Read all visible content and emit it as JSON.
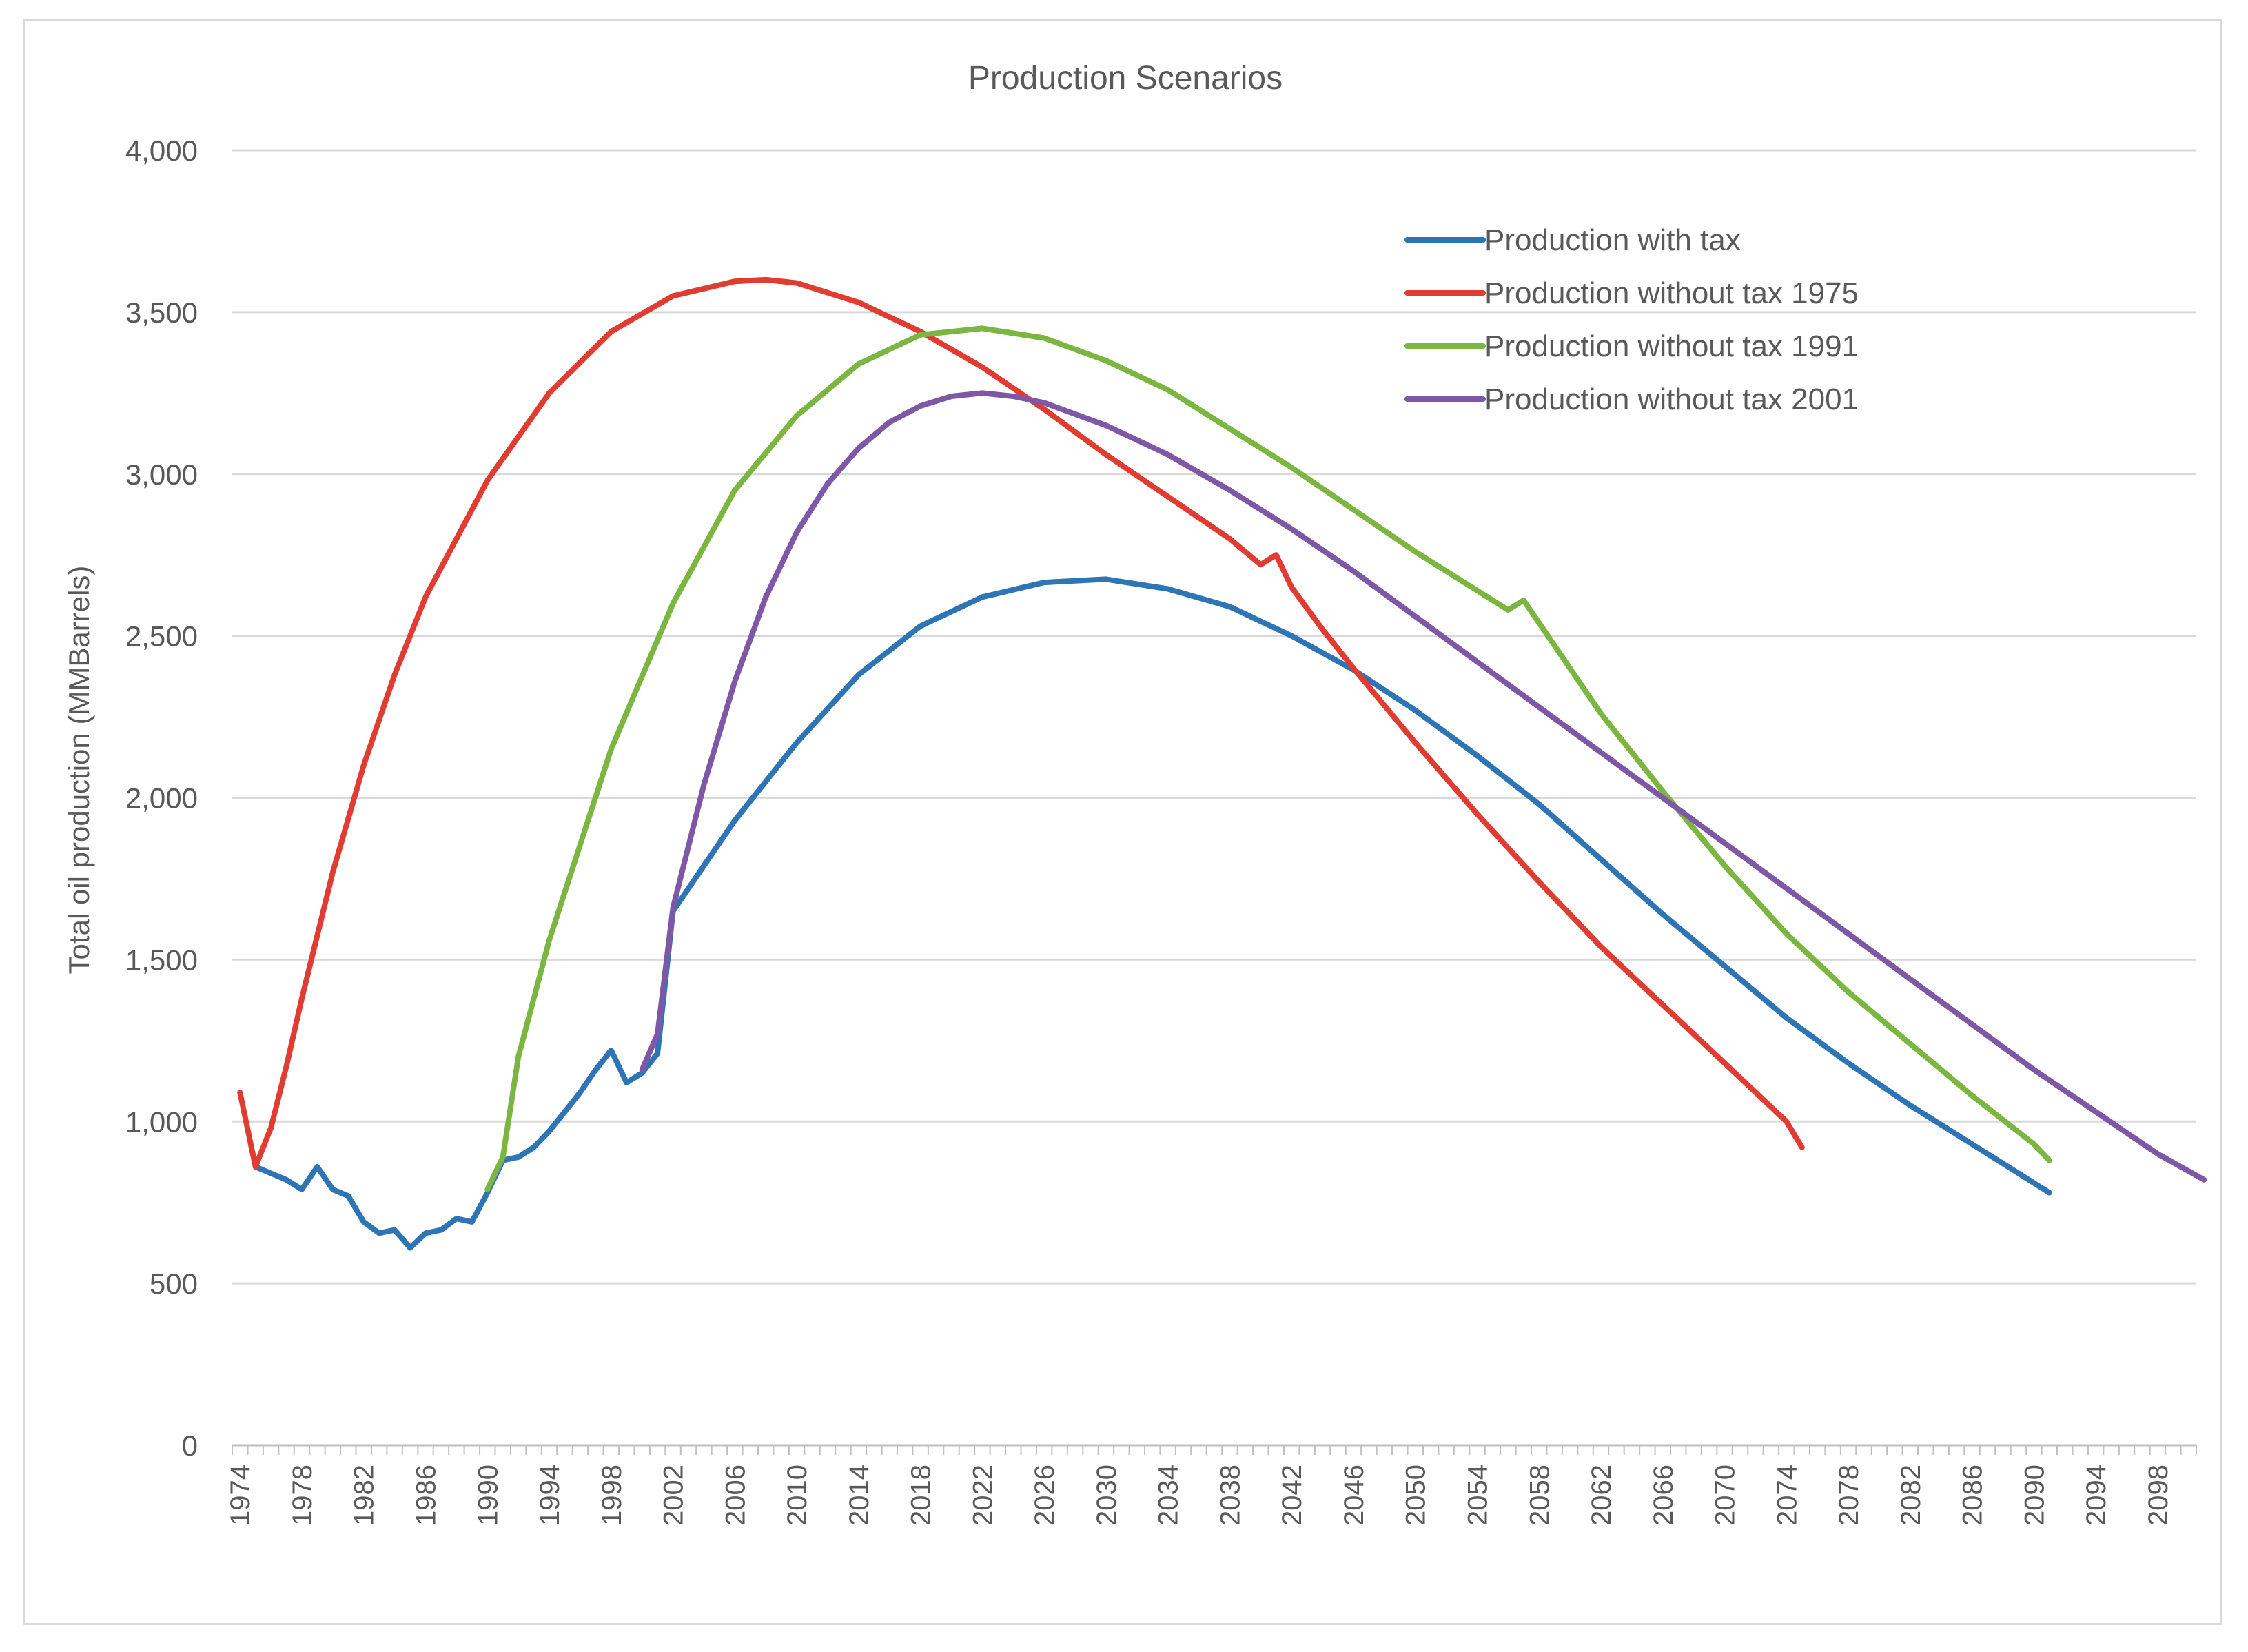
{
  "chart_data": {
    "type": "line",
    "title": "Production Scenarios",
    "xlabel": "",
    "ylabel": "Total oil  production (MMBarrels)",
    "ylim": [
      0,
      4000
    ],
    "xlim": [
      1974,
      2101
    ],
    "y_ticks": [
      "0",
      "500",
      "1,000",
      "1,500",
      "2,000",
      "2,500",
      "3,000",
      "3,500",
      "4,000"
    ],
    "x_ticks": [
      "1974",
      "1978",
      "1982",
      "1986",
      "1990",
      "1994",
      "1998",
      "2002",
      "2006",
      "2010",
      "2014",
      "2018",
      "2022",
      "2026",
      "2030",
      "2034",
      "2038",
      "2042",
      "2046",
      "2050",
      "2054",
      "2058",
      "2062",
      "2066",
      "2070",
      "2074",
      "2078",
      "2082",
      "2086",
      "2090",
      "2094",
      "2098"
    ],
    "grid": true,
    "legend_position": "top-right",
    "series": [
      {
        "name": "Production with tax",
        "color": "#2e75b6",
        "x": [
          1975,
          1976,
          1977,
          1978,
          1979,
          1980,
          1981,
          1982,
          1983,
          1984,
          1985,
          1986,
          1987,
          1988,
          1989,
          1990,
          1991,
          1992,
          1993,
          1994,
          1995,
          1996,
          1997,
          1998,
          1999,
          2000,
          2001,
          2002,
          2006,
          2010,
          2014,
          2018,
          2022,
          2026,
          2030,
          2034,
          2038,
          2042,
          2046,
          2050,
          2054,
          2058,
          2062,
          2066,
          2070,
          2074,
          2078,
          2082,
          2086,
          2090,
          2091
        ],
        "values": [
          860,
          840,
          820,
          790,
          860,
          790,
          770,
          690,
          655,
          665,
          610,
          655,
          665,
          700,
          690,
          780,
          880,
          890,
          920,
          970,
          1030,
          1090,
          1160,
          1220,
          1120,
          1150,
          1210,
          1650,
          1930,
          2170,
          2380,
          2530,
          2620,
          2665,
          2675,
          2645,
          2590,
          2500,
          2395,
          2270,
          2130,
          1980,
          1810,
          1640,
          1480,
          1320,
          1180,
          1050,
          930,
          810,
          780
        ]
      },
      {
        "name": "Production without  tax 1975",
        "color": "#e03c31",
        "x": [
          1974,
          1975,
          1976,
          1977,
          1978,
          1980,
          1982,
          1984,
          1986,
          1990,
          1994,
          1998,
          2002,
          2006,
          2008,
          2010,
          2014,
          2018,
          2022,
          2026,
          2030,
          2034,
          2038,
          2040,
          2041,
          2042,
          2044,
          2046,
          2050,
          2054,
          2058,
          2062,
          2066,
          2070,
          2074,
          2075
        ],
        "values": [
          1090,
          860,
          980,
          1170,
          1380,
          1770,
          2100,
          2380,
          2620,
          2980,
          3250,
          3440,
          3550,
          3595,
          3600,
          3590,
          3530,
          3440,
          3330,
          3200,
          3060,
          2930,
          2800,
          2720,
          2750,
          2650,
          2520,
          2400,
          2170,
          1950,
          1740,
          1540,
          1360,
          1180,
          1000,
          920
        ]
      },
      {
        "name": "Production without  tax 1991",
        "color": "#7ab640",
        "x": [
          1990,
          1991,
          1992,
          1994,
          1998,
          2002,
          2006,
          2010,
          2014,
          2018,
          2022,
          2026,
          2030,
          2034,
          2038,
          2042,
          2046,
          2050,
          2054,
          2056,
          2057,
          2058,
          2062,
          2066,
          2070,
          2074,
          2078,
          2082,
          2086,
          2090,
          2091
        ],
        "values": [
          790,
          890,
          1200,
          1560,
          2150,
          2600,
          2950,
          3180,
          3340,
          3430,
          3450,
          3420,
          3350,
          3260,
          3140,
          3020,
          2890,
          2760,
          2640,
          2580,
          2610,
          2540,
          2260,
          2020,
          1790,
          1580,
          1400,
          1240,
          1080,
          930,
          880
        ]
      },
      {
        "name": "Production without  tax 2001",
        "color": "#7e57a6",
        "x": [
          2000,
          2001,
          2002,
          2004,
          2006,
          2008,
          2010,
          2012,
          2014,
          2016,
          2018,
          2020,
          2022,
          2024,
          2026,
          2030,
          2034,
          2038,
          2042,
          2046,
          2050,
          2054,
          2058,
          2062,
          2066,
          2070,
          2074,
          2078,
          2082,
          2086,
          2090,
          2094,
          2098,
          2101
        ],
        "values": [
          1160,
          1270,
          1660,
          2040,
          2360,
          2620,
          2820,
          2970,
          3080,
          3160,
          3210,
          3240,
          3250,
          3240,
          3220,
          3150,
          3060,
          2950,
          2830,
          2700,
          2560,
          2420,
          2280,
          2140,
          2000,
          1860,
          1720,
          1580,
          1440,
          1300,
          1160,
          1030,
          900,
          820
        ]
      }
    ]
  }
}
